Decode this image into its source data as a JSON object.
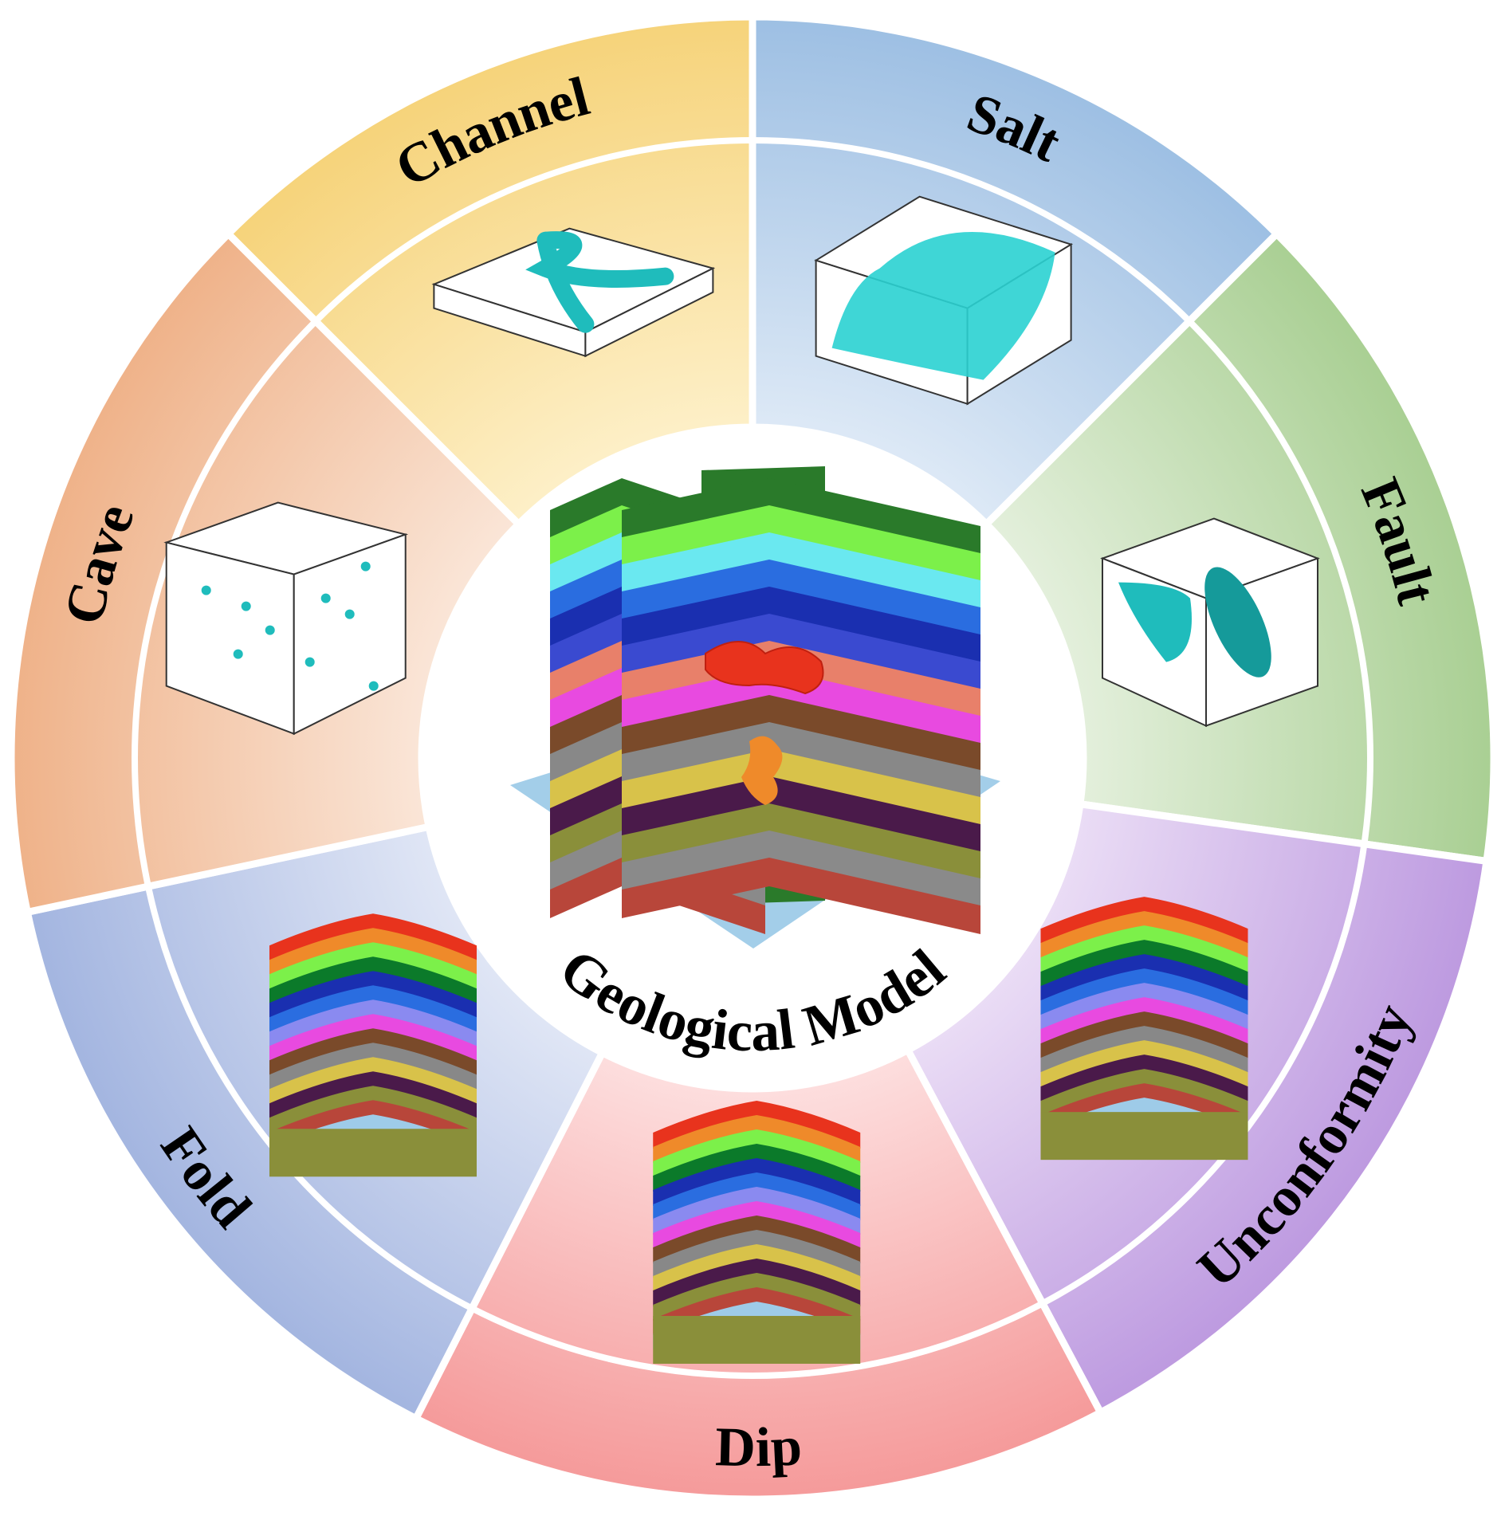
{
  "center": {
    "title": "Geological Model"
  },
  "segments": [
    {
      "id": "channel",
      "label": "Channel",
      "icon": "channel-3d-icon",
      "color": "#f5d98a"
    },
    {
      "id": "salt",
      "label": "Salt",
      "icon": "salt-3d-icon",
      "color": "#a9c6e6"
    },
    {
      "id": "fault",
      "label": "Fault",
      "icon": "fault-3d-icon",
      "color": "#b9d6a8"
    },
    {
      "id": "unconformity",
      "label": "Unconformity",
      "icon": "unconformity-3d-icon",
      "color": "#cfb6e6"
    },
    {
      "id": "dip",
      "label": "Dip",
      "icon": "dip-3d-icon",
      "color": "#f7a9a9"
    },
    {
      "id": "fold",
      "label": "Fold",
      "icon": "fold-3d-icon",
      "color": "#b4c3e6"
    },
    {
      "id": "cave",
      "label": "Cave",
      "icon": "cave-3d-icon",
      "color": "#f2bf9c"
    }
  ]
}
